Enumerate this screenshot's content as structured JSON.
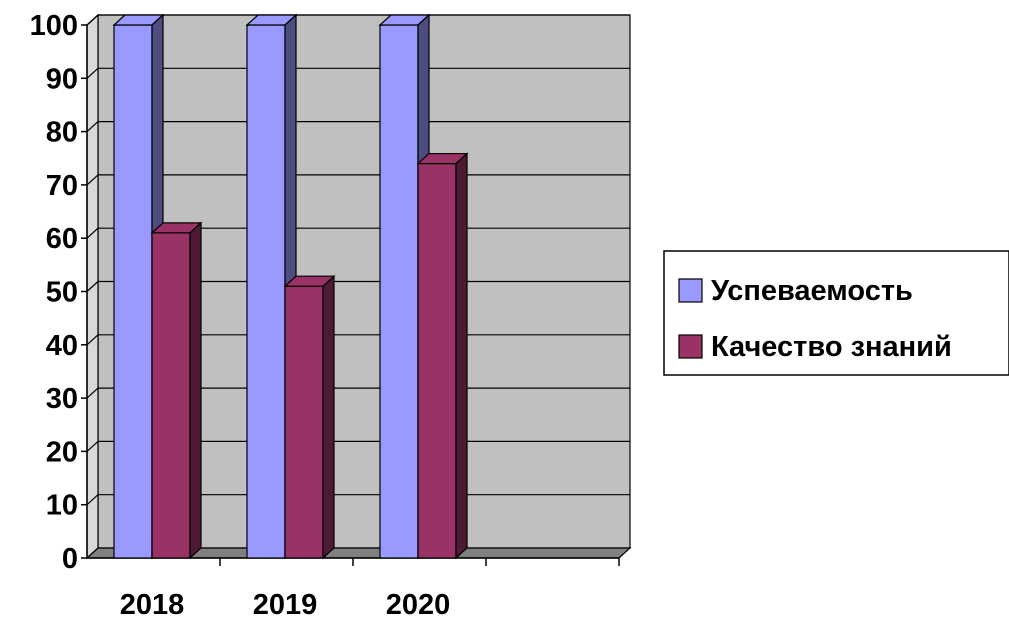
{
  "chart_data": {
    "type": "bar",
    "categories": [
      "2018",
      "2019",
      "2020"
    ],
    "series": [
      {
        "name": "Успеваемость",
        "values": [
          100,
          100,
          100
        ],
        "color": "#9999ff",
        "side_color": "#4d4d80"
      },
      {
        "name": "Качество знаний",
        "values": [
          61,
          51,
          74
        ],
        "color": "#993366",
        "side_color": "#4d1a33"
      }
    ],
    "yticks": [
      "0",
      "10",
      "20",
      "30",
      "40",
      "50",
      "60",
      "70",
      "80",
      "90",
      "100"
    ],
    "ylim": [
      0,
      100
    ],
    "grid": true,
    "legend_position": "right",
    "style": "3d-clustered-column",
    "wall_color": "#c0c0c0",
    "floor_color": "#808080"
  }
}
